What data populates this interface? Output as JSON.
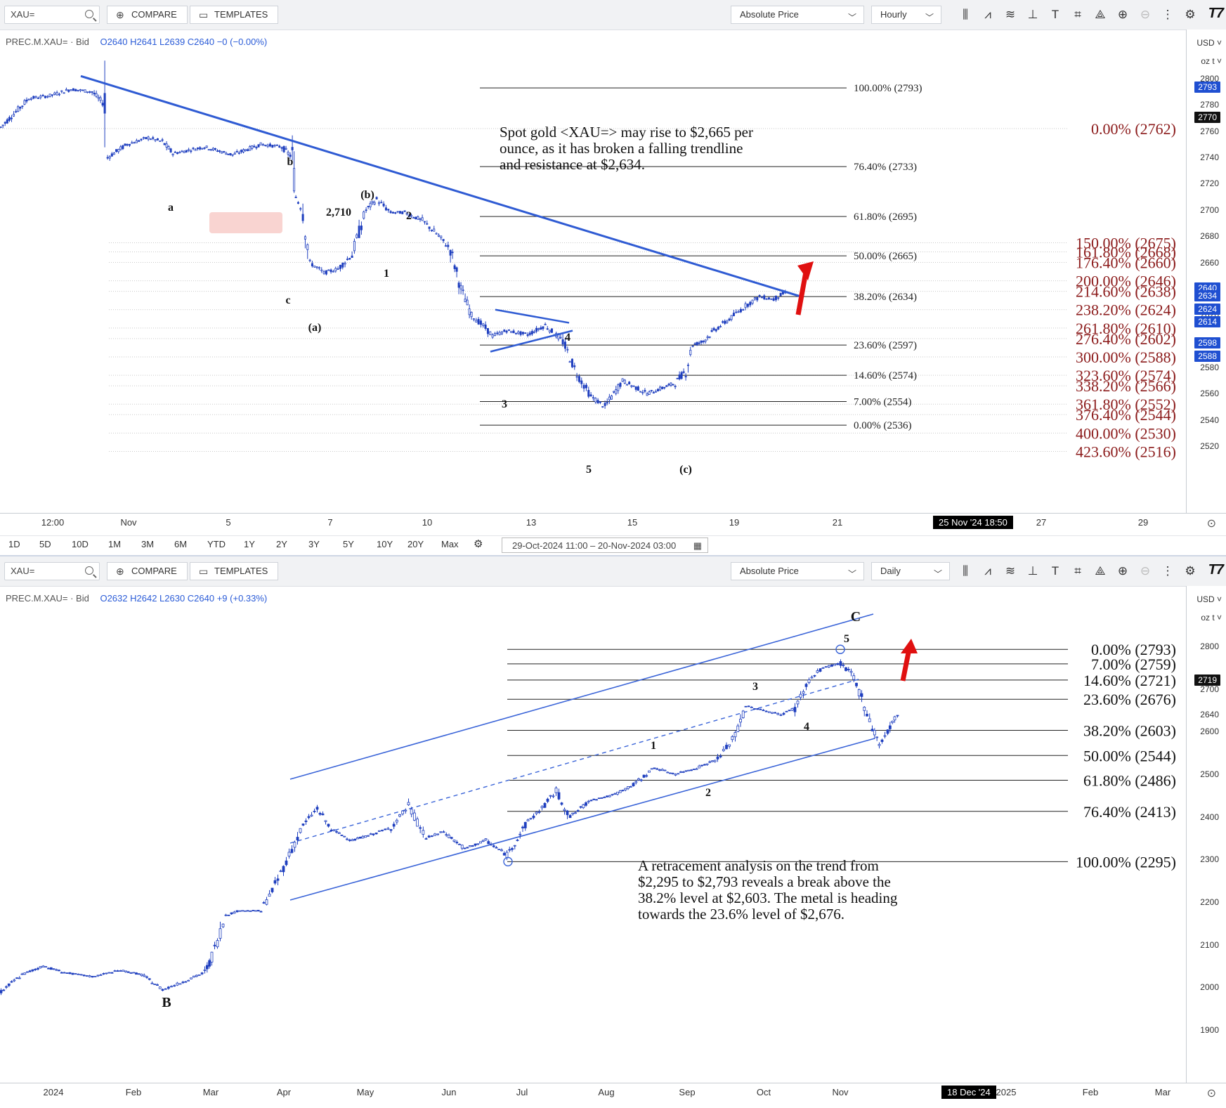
{
  "top_chart": {
    "toolbar": {
      "symbol_value": "XAU=",
      "compare_label": "COMPARE",
      "templates_label": "TEMPLATES",
      "price_type": "Absolute Price",
      "interval": "Hourly"
    },
    "info": {
      "instrument": "PREC.M.XAU= · Bid",
      "ohlc": "O2640  H2641  L2639  C2640  −0 (−0.00%)"
    },
    "y_axis": {
      "currency": "USD ˅",
      "unit": "oz t ˅",
      "ticks": [
        "2800",
        "2780",
        "2760",
        "2740",
        "2720",
        "2700",
        "2680",
        "2660",
        "2640",
        "2620",
        "2600",
        "2580",
        "2560",
        "2540",
        "2520"
      ],
      "badges": [
        {
          "label": "2793",
          "color": "#1f4fd1"
        },
        {
          "label": "2770",
          "color": "#111111"
        },
        {
          "label": "2640",
          "color": "#1f4fd1"
        },
        {
          "label": "2634",
          "color": "#1f4fd1"
        },
        {
          "label": "2624",
          "color": "#1f4fd1"
        },
        {
          "label": "2614",
          "color": "#1f4fd1"
        },
        {
          "label": "2598",
          "color": "#1f4fd1"
        },
        {
          "label": "2588",
          "color": "#1f4fd1"
        }
      ]
    },
    "x_axis": {
      "ticks": [
        "12:00",
        "Nov",
        "5",
        "7",
        "10",
        "13",
        "15",
        "19",
        "21",
        "27",
        "29"
      ],
      "cursor_label": "25 Nov '24   18:50"
    },
    "range_buttons": [
      "1D",
      "5D",
      "10D",
      "1M",
      "3M",
      "6M",
      "YTD",
      "1Y",
      "2Y",
      "3Y",
      "5Y",
      "10Y",
      "20Y",
      "Max"
    ],
    "date_range": "29-Oct-2024 11:00  –  20-Nov-2024 03:00",
    "fib_levels_black": [
      "100.00% (2793)",
      "76.40% (2733)",
      "61.80% (2695)",
      "50.00% (2665)",
      "38.20% (2634)",
      "23.60% (2597)",
      "14.60% (2574)",
      "7.00% (2554)",
      "0.00% (2536)"
    ],
    "fib_levels_red": [
      "0.00% (2762)",
      "150.00% (2675)",
      "161.80% (2668)",
      "176.40% (2660)",
      "200.00% (2646)",
      "214.60% (2638)",
      "238.20% (2624)",
      "261.80% (2610)",
      "276.40% (2602)",
      "300.00% (2588)",
      "323.60% (2574)",
      "338.20% (2566)",
      "361.80% (2552)",
      "376.40% (2544)",
      "400.00% (2530)",
      "423.60% (2516)"
    ],
    "wave_labels": [
      "a",
      "b",
      "c",
      "(a)",
      "(b)",
      "2,710",
      "1",
      "2",
      "3",
      "4",
      "5",
      "(c)"
    ],
    "annotation": [
      "Spot gold <XAU=> may rise to $2,665 per",
      "ounce, as it has broken a falling trendline",
      "and resistance at $2,634."
    ],
    "colors": {
      "trend_line": "#2f5bd3",
      "fib_red": "#8b1a1a",
      "arrow": "#e01010",
      "candle": "#1f3fbf"
    }
  },
  "bottom_chart": {
    "toolbar": {
      "symbol_value": "XAU=",
      "compare_label": "COMPARE",
      "templates_label": "TEMPLATES",
      "price_type": "Absolute Price",
      "interval": "Daily"
    },
    "info": {
      "instrument": "PREC.M.XAU= · Bid",
      "ohlc": "O2632  H2642  L2630  C2640  +9 (+0.33%)"
    },
    "y_axis": {
      "currency": "USD ˅",
      "unit": "oz t ˅",
      "ticks": [
        "2800",
        "2700",
        "2640",
        "2600",
        "2500",
        "2400",
        "2300",
        "2200",
        "2100",
        "2000",
        "1900"
      ],
      "badge": "2719"
    },
    "x_axis": {
      "ticks": [
        "2024",
        "Feb",
        "Mar",
        "Apr",
        "May",
        "Jun",
        "Jul",
        "Aug",
        "Sep",
        "Oct",
        "Nov",
        "Dec",
        "2025",
        "Feb",
        "Mar"
      ],
      "cursor_label": "18 Dec '24"
    },
    "fib_levels": [
      "0.00% (2793)",
      "7.00% (2759)",
      "14.60% (2721)",
      "23.60% (2676)",
      "38.20% (2603)",
      "50.00% (2544)",
      "61.80% (2486)",
      "76.40% (2413)",
      "100.00% (2295)"
    ],
    "wave_labels": [
      "B",
      "C",
      "5",
      "3",
      "1",
      "2",
      "4"
    ],
    "annotation": [
      "A retracement analysis on the trend from",
      "$2,295 to $2,793 reveals a break above the",
      "38.2% level at $2,603. The metal is heading",
      "towards the 23.6% level of $2,676."
    ]
  }
}
